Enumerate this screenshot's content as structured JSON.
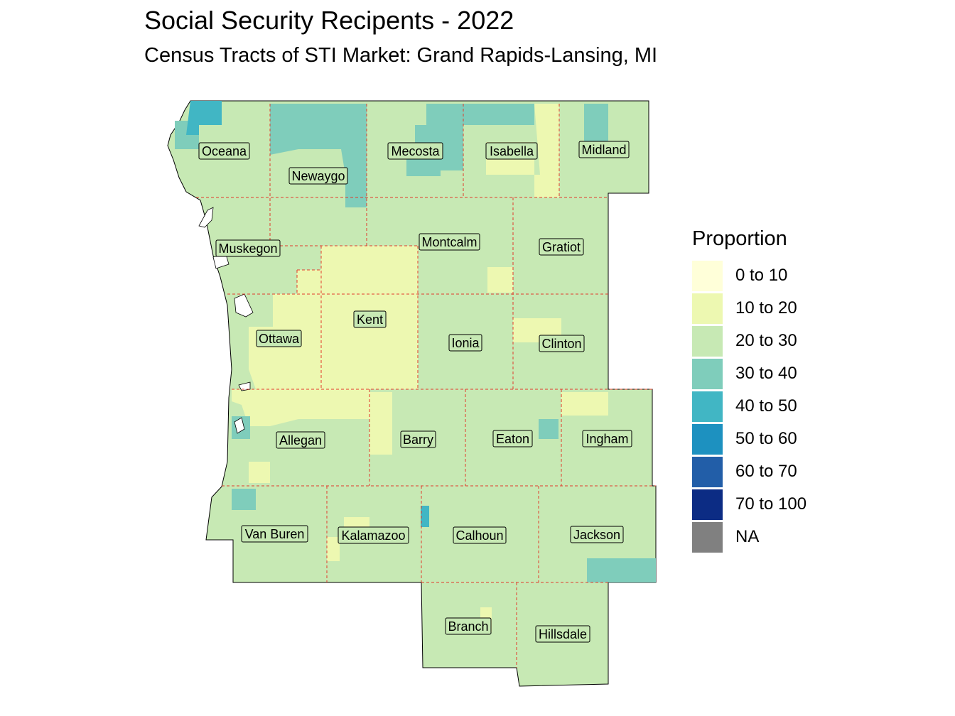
{
  "title": "Social Security Recipents - 2022",
  "subtitle": "Census Tracts of STI Market: Grand Rapids-Lansing, MI",
  "legend": {
    "title": "Proportion",
    "items": [
      {
        "label": "0 to 10",
        "color": "#ffffd9"
      },
      {
        "label": "10 to 20",
        "color": "#edf8b1"
      },
      {
        "label": "20 to 30",
        "color": "#c7e9b4"
      },
      {
        "label": "30 to 40",
        "color": "#7fcdbb"
      },
      {
        "label": "40 to 50",
        "color": "#41b6c4"
      },
      {
        "label": "50 to 60",
        "color": "#1d91c0"
      },
      {
        "label": "60 to 70",
        "color": "#225ea8"
      },
      {
        "label": "70 to 100",
        "color": "#0c2c84"
      },
      {
        "label": "NA",
        "color": "#808080"
      }
    ]
  },
  "counties": [
    {
      "name": "Oceana"
    },
    {
      "name": "Newaygo"
    },
    {
      "name": "Mecosta"
    },
    {
      "name": "Isabella"
    },
    {
      "name": "Midland"
    },
    {
      "name": "Muskegon"
    },
    {
      "name": "Montcalm"
    },
    {
      "name": "Gratiot"
    },
    {
      "name": "Kent"
    },
    {
      "name": "Ottawa"
    },
    {
      "name": "Ionia"
    },
    {
      "name": "Clinton"
    },
    {
      "name": "Allegan"
    },
    {
      "name": "Barry"
    },
    {
      "name": "Eaton"
    },
    {
      "name": "Ingham"
    },
    {
      "name": "Van Buren"
    },
    {
      "name": "Kalamazoo"
    },
    {
      "name": "Calhoun"
    },
    {
      "name": "Jackson"
    },
    {
      "name": "Branch"
    },
    {
      "name": "Hillsdale"
    }
  ]
}
